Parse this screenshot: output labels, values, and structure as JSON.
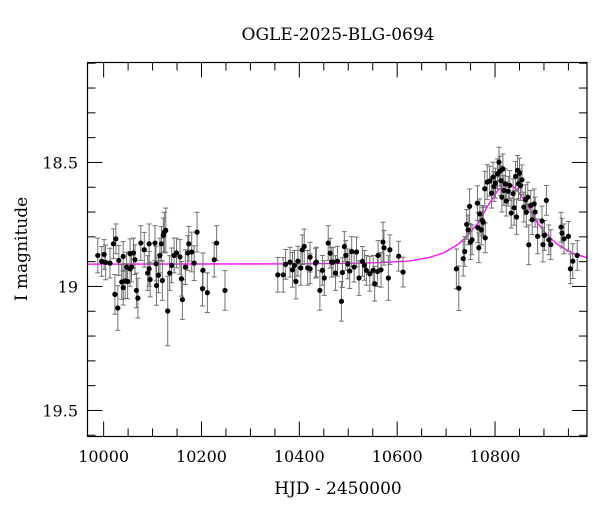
{
  "chart_data": {
    "type": "scatter",
    "title": "OGLE-2025-BLG-0694",
    "xlabel": "HJD - 2450000",
    "ylabel": "I magnitude",
    "xlim": [
      9967,
      10988
    ],
    "ylim": [
      19.605,
      18.097
    ],
    "y_inverted": true,
    "x_ticks": [
      10000,
      10200,
      10400,
      10600,
      10800
    ],
    "x_tick_labels": [
      "10000",
      "10200",
      "10400",
      "10600",
      "10800"
    ],
    "y_ticks": [
      18.5,
      19,
      19.5
    ],
    "y_tick_labels": [
      "18.5",
      "19",
      "19.5"
    ],
    "grid": false,
    "colors": {
      "points": "#000000",
      "error_bars": "#707070",
      "model": "#ff00ff"
    },
    "points": [
      [
        9988,
        18.875,
        0.07
      ],
      [
        9996,
        18.899,
        0.06
      ],
      [
        10001,
        18.871,
        0.06
      ],
      [
        10004,
        18.903,
        0.07
      ],
      [
        10013,
        18.906,
        0.06
      ],
      [
        10020,
        18.828,
        0.06
      ],
      [
        10023,
        19.032,
        0.08
      ],
      [
        10025,
        18.808,
        0.06
      ],
      [
        10029,
        19.087,
        0.09
      ],
      [
        10031,
        18.895,
        0.06
      ],
      [
        10037,
        18.982,
        0.07
      ],
      [
        10040,
        18.879,
        0.06
      ],
      [
        10040,
        19.005,
        0.07
      ],
      [
        10044,
        18.978,
        0.07
      ],
      [
        10047,
        18.922,
        0.06
      ],
      [
        10049,
        18.98,
        0.07
      ],
      [
        10054,
        18.868,
        0.06
      ],
      [
        10054,
        18.929,
        0.07
      ],
      [
        10057,
        18.922,
        0.06
      ],
      [
        10061,
        18.865,
        0.06
      ],
      [
        10064,
        18.892,
        0.06
      ],
      [
        10067,
        19.016,
        0.07
      ],
      [
        10070,
        19.047,
        0.08
      ],
      [
        10076,
        18.825,
        0.07
      ],
      [
        10083,
        18.852,
        0.07
      ],
      [
        10090,
        18.946,
        0.07
      ],
      [
        10093,
        18.828,
        0.08
      ],
      [
        10093,
        18.929,
        0.07
      ],
      [
        10095,
        18.972,
        0.07
      ],
      [
        10105,
        18.825,
        0.07
      ],
      [
        10107,
        18.908,
        0.07
      ],
      [
        10108,
        18.996,
        0.08
      ],
      [
        10112,
        18.955,
        0.07
      ],
      [
        10115,
        18.875,
        0.07
      ],
      [
        10118,
        18.828,
        0.07
      ],
      [
        10120,
        18.976,
        0.08
      ],
      [
        10122,
        18.794,
        0.07
      ],
      [
        10124,
        18.781,
        0.08
      ],
      [
        10127,
        18.774,
        0.09
      ],
      [
        10131,
        19.099,
        0.14
      ],
      [
        10135,
        18.946,
        0.07
      ],
      [
        10139,
        18.915,
        0.07
      ],
      [
        10144,
        18.875,
        0.07
      ],
      [
        10149,
        18.865,
        0.06
      ],
      [
        10156,
        18.881,
        0.07
      ],
      [
        10159,
        18.969,
        0.07
      ],
      [
        10161,
        19.053,
        0.08
      ],
      [
        10167,
        18.922,
        0.07
      ],
      [
        10172,
        18.865,
        0.07
      ],
      [
        10174,
        18.828,
        0.07
      ],
      [
        10180,
        18.861,
        0.08
      ],
      [
        10185,
        18.906,
        0.07
      ],
      [
        10191,
        18.781,
        0.08
      ],
      [
        10202,
        19.009,
        0.07
      ],
      [
        10203,
        18.935,
        0.07
      ],
      [
        10212,
        19.025,
        0.08
      ],
      [
        10226,
        18.892,
        0.07
      ],
      [
        10231,
        18.825,
        0.07
      ],
      [
        10248,
        19.016,
        0.08
      ],
      [
        10356,
        18.953,
        0.07
      ],
      [
        10367,
        18.953,
        0.07
      ],
      [
        10372,
        18.911,
        0.06
      ],
      [
        10381,
        18.902,
        0.06
      ],
      [
        10386,
        18.933,
        0.07
      ],
      [
        10390,
        18.915,
        0.06
      ],
      [
        10393,
        18.98,
        0.07
      ],
      [
        10397,
        18.898,
        0.06
      ],
      [
        10403,
        18.925,
        0.07
      ],
      [
        10406,
        18.852,
        0.06
      ],
      [
        10410,
        18.839,
        0.07
      ],
      [
        10417,
        18.925,
        0.07
      ],
      [
        10422,
        18.929,
        0.06
      ],
      [
        10422,
        18.882,
        0.06
      ],
      [
        10433,
        18.906,
        0.06
      ],
      [
        10435,
        18.902,
        0.06
      ],
      [
        10442,
        19.016,
        0.08
      ],
      [
        10447,
        18.935,
        0.06
      ],
      [
        10451,
        18.966,
        0.07
      ],
      [
        10459,
        18.825,
        0.07
      ],
      [
        10463,
        18.866,
        0.06
      ],
      [
        10466,
        18.902,
        0.06
      ],
      [
        10469,
        18.902,
        0.06
      ],
      [
        10474,
        18.946,
        0.07
      ],
      [
        10478,
        18.898,
        0.06
      ],
      [
        10486,
        19.06,
        0.08
      ],
      [
        10488,
        18.944,
        0.06
      ],
      [
        10492,
        18.839,
        0.06
      ],
      [
        10495,
        18.875,
        0.06
      ],
      [
        10499,
        18.909,
        0.06
      ],
      [
        10503,
        18.938,
        0.07
      ],
      [
        10507,
        18.859,
        0.06
      ],
      [
        10512,
        18.922,
        0.06
      ],
      [
        10517,
        18.861,
        0.06
      ],
      [
        10522,
        18.966,
        0.07
      ],
      [
        10529,
        18.899,
        0.06
      ],
      [
        10533,
        18.915,
        0.06
      ],
      [
        10537,
        18.935,
        0.06
      ],
      [
        10544,
        18.949,
        0.07
      ],
      [
        10551,
        18.935,
        0.06
      ],
      [
        10554,
        18.989,
        0.07
      ],
      [
        10560,
        18.94,
        0.06
      ],
      [
        10561,
        18.875,
        0.06
      ],
      [
        10567,
        18.933,
        0.07
      ],
      [
        10571,
        18.821,
        0.08
      ],
      [
        10573,
        18.844,
        0.07
      ],
      [
        10582,
        18.966,
        0.09
      ],
      [
        10585,
        18.852,
        0.06
      ],
      [
        10603,
        18.878,
        0.06
      ],
      [
        10612,
        18.942,
        0.06
      ],
      [
        10721,
        18.929,
        0.08
      ],
      [
        10726,
        19.007,
        0.09
      ],
      [
        10735,
        18.888,
        0.07
      ],
      [
        10738,
        18.859,
        0.06
      ],
      [
        10742,
        18.75,
        0.06
      ],
      [
        10745,
        18.772,
        0.06
      ],
      [
        10748,
        18.677,
        0.07
      ],
      [
        10750,
        18.821,
        0.07
      ],
      [
        10753,
        18.812,
        0.06
      ],
      [
        10764,
        18.664,
        0.07
      ],
      [
        10765,
        18.763,
        0.06
      ],
      [
        10767,
        18.844,
        0.06
      ],
      [
        10769,
        18.707,
        0.06
      ],
      [
        10772,
        18.772,
        0.06
      ],
      [
        10774,
        18.734,
        0.06
      ],
      [
        10776,
        18.741,
        0.06
      ],
      [
        10779,
        18.606,
        0.07
      ],
      [
        10780,
        18.804,
        0.06
      ],
      [
        10784,
        18.579,
        0.07
      ],
      [
        10789,
        18.575,
        0.06
      ],
      [
        10793,
        18.624,
        0.06
      ],
      [
        10796,
        18.559,
        0.06
      ],
      [
        10798,
        18.597,
        0.06
      ],
      [
        10801,
        18.583,
        0.06
      ],
      [
        10805,
        18.546,
        0.06
      ],
      [
        10808,
        18.499,
        0.06
      ],
      [
        10810,
        18.535,
        0.06
      ],
      [
        10812,
        18.573,
        0.06
      ],
      [
        10814,
        18.64,
        0.06
      ],
      [
        10816,
        18.526,
        0.06
      ],
      [
        10818,
        18.613,
        0.06
      ],
      [
        10821,
        18.586,
        0.06
      ],
      [
        10823,
        18.656,
        0.06
      ],
      [
        10827,
        18.616,
        0.06
      ],
      [
        10830,
        18.593,
        0.06
      ],
      [
        10833,
        18.704,
        0.06
      ],
      [
        10837,
        18.626,
        0.06
      ],
      [
        10839,
        18.683,
        0.07
      ],
      [
        10842,
        18.556,
        0.06
      ],
      [
        10844,
        18.72,
        0.07
      ],
      [
        10846,
        18.532,
        0.06
      ],
      [
        10848,
        18.586,
        0.06
      ],
      [
        10850,
        18.543,
        0.06
      ],
      [
        10852,
        18.593,
        0.06
      ],
      [
        10855,
        18.57,
        0.06
      ],
      [
        10859,
        18.68,
        0.06
      ],
      [
        10862,
        18.65,
        0.06
      ],
      [
        10864,
        18.7,
        0.06
      ],
      [
        10867,
        18.64,
        0.06
      ],
      [
        10869,
        18.832,
        0.08
      ],
      [
        10873,
        18.673,
        0.06
      ],
      [
        10876,
        18.731,
        0.06
      ],
      [
        10880,
        18.667,
        0.06
      ],
      [
        10882,
        18.7,
        0.06
      ],
      [
        10887,
        18.798,
        0.07
      ],
      [
        10896,
        18.736,
        0.06
      ],
      [
        10898,
        18.831,
        0.07
      ],
      [
        10901,
        18.794,
        0.06
      ],
      [
        10905,
        18.653,
        0.06
      ],
      [
        10910,
        18.812,
        0.06
      ],
      [
        10914,
        18.831,
        0.06
      ],
      [
        10935,
        18.761,
        0.06
      ],
      [
        10937,
        18.785,
        0.06
      ],
      [
        10941,
        18.808,
        0.06
      ],
      [
        10950,
        18.798,
        0.06
      ],
      [
        10954,
        18.929,
        0.06
      ],
      [
        10959,
        18.898,
        0.07
      ],
      [
        10968,
        18.875,
        0.06
      ]
    ],
    "model_curve": [
      [
        9967,
        18.91
      ],
      [
        10400,
        18.909
      ],
      [
        10500,
        18.907
      ],
      [
        10566,
        18.904
      ],
      [
        10626,
        18.8975
      ],
      [
        10666,
        18.883
      ],
      [
        10696,
        18.864
      ],
      [
        10726,
        18.828
      ],
      [
        10746,
        18.79
      ],
      [
        10766,
        18.742
      ],
      [
        10786,
        18.672
      ],
      [
        10806,
        18.612
      ],
      [
        10826,
        18.58
      ],
      [
        10846,
        18.612
      ],
      [
        10866,
        18.672
      ],
      [
        10886,
        18.742
      ],
      [
        10906,
        18.79
      ],
      [
        10926,
        18.828
      ],
      [
        10956,
        18.864
      ],
      [
        10986,
        18.883
      ],
      [
        10988,
        18.884
      ]
    ]
  }
}
